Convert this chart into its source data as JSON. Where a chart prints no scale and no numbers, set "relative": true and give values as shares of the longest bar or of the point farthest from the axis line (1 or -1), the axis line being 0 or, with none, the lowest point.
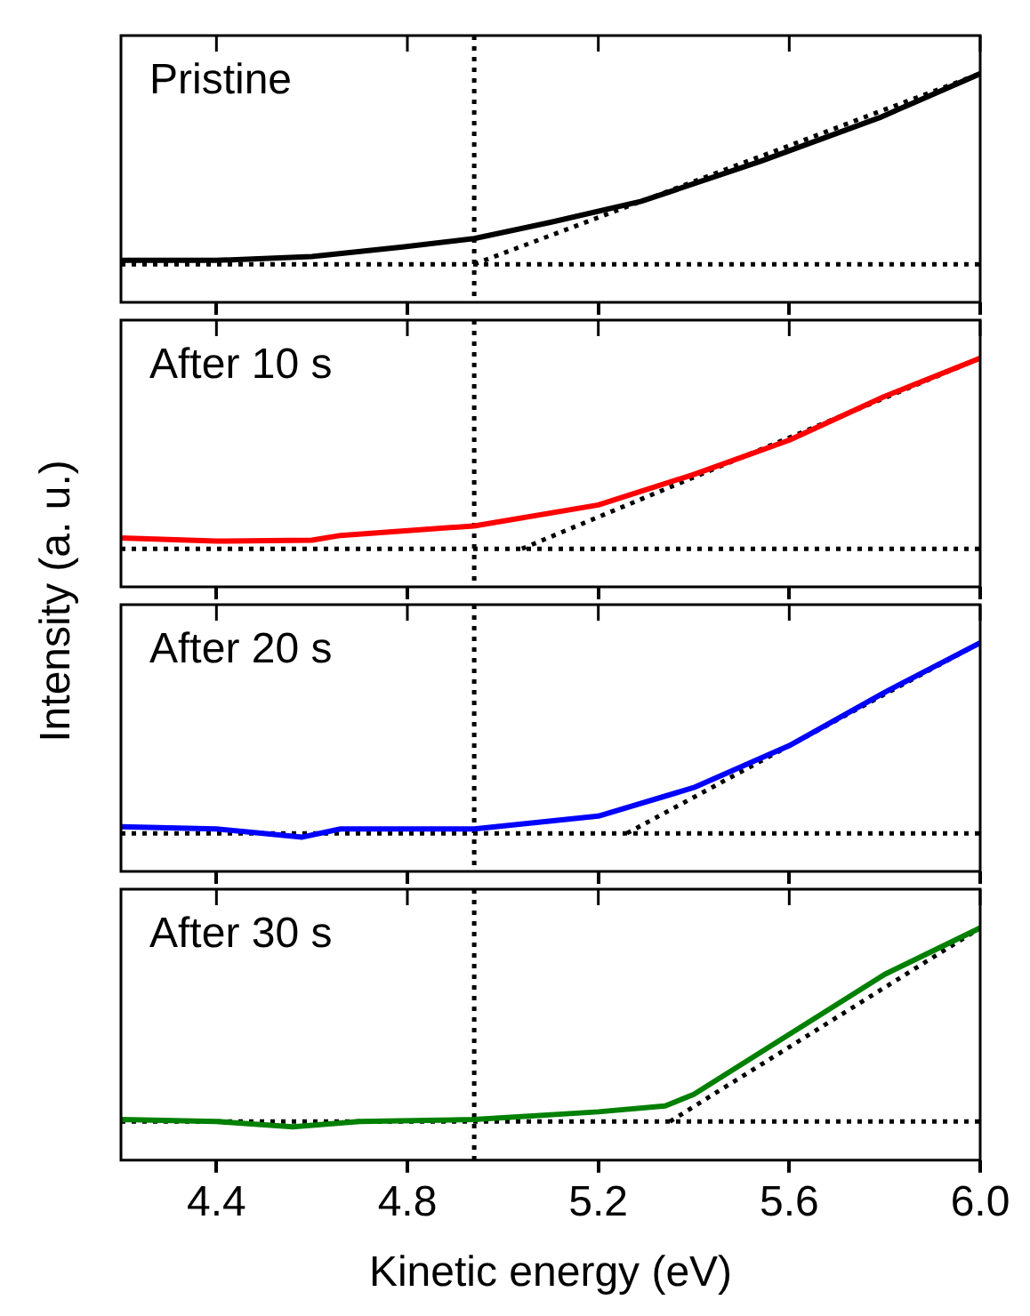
{
  "chart_data": [
    {
      "type": "line",
      "title": "Pristine",
      "ylabel": "Intensity (a. u.)",
      "relative": true,
      "xlim": [
        4.2,
        6.0
      ],
      "xticks": [
        4.4,
        4.8,
        5.2,
        5.6,
        6.0
      ],
      "tick_labels": false,
      "series": [
        {
          "color": "#000000",
          "x": [
            4.2,
            4.4,
            4.6,
            4.79,
            4.94,
            5.1,
            5.29,
            5.54,
            5.79,
            6.0
          ],
          "values": [
            0.02,
            0.02,
            0.04,
            0.09,
            0.135,
            0.22,
            0.33,
            0.54,
            0.77,
            1.0
          ]
        },
        {
          "type": "line",
          "line_style": "dotted",
          "color": "#000000",
          "x": [
            4.94,
            6.0
          ],
          "values": [
            0,
            1.0
          ]
        }
      ],
      "ref_lines": [
        {
          "axis": "x",
          "value": 4.94,
          "color": "#000000",
          "line_style": "dotted"
        },
        {
          "axis": "y",
          "value": 0,
          "color": "#000000",
          "line_style": "dotted"
        }
      ]
    },
    {
      "type": "line",
      "title": "After 10 s",
      "relative": true,
      "xlim": [
        4.2,
        6.0
      ],
      "xticks": [
        4.4,
        4.8,
        5.2,
        5.6,
        6.0
      ],
      "tick_labels": false,
      "series": [
        {
          "color": "#ff0000",
          "x": [
            4.2,
            4.4,
            4.6,
            4.66,
            4.94,
            5.2,
            5.4,
            5.6,
            5.8,
            6.0
          ],
          "values": [
            0.057,
            0.04,
            0.045,
            0.07,
            0.12,
            0.23,
            0.39,
            0.57,
            0.8,
            1.0
          ]
        },
        {
          "type": "line",
          "line_style": "dotted",
          "color": "#000000",
          "x": [
            5.04,
            6.0
          ],
          "values": [
            0,
            1.0
          ]
        }
      ],
      "ref_lines": [
        {
          "axis": "x",
          "value": 4.94,
          "color": "#000000",
          "line_style": "dotted"
        },
        {
          "axis": "y",
          "value": 0,
          "color": "#000000",
          "line_style": "dotted"
        }
      ]
    },
    {
      "type": "line",
      "title": "After 20 s",
      "relative": true,
      "xlim": [
        4.2,
        6.0
      ],
      "xticks": [
        4.4,
        4.8,
        5.2,
        5.6,
        6.0
      ],
      "tick_labels": false,
      "series": [
        {
          "color": "#0000ff",
          "x": [
            4.2,
            4.4,
            4.58,
            4.66,
            4.94,
            5.2,
            5.4,
            5.6,
            5.8,
            6.0
          ],
          "values": [
            0.035,
            0.023,
            -0.02,
            0.023,
            0.023,
            0.09,
            0.24,
            0.46,
            0.74,
            1.0
          ]
        },
        {
          "type": "line",
          "line_style": "dotted",
          "color": "#000000",
          "x": [
            5.26,
            6.0
          ],
          "values": [
            0,
            1.0
          ]
        }
      ],
      "ref_lines": [
        {
          "axis": "x",
          "value": 4.94,
          "color": "#000000",
          "line_style": "dotted"
        },
        {
          "axis": "y",
          "value": 0,
          "color": "#000000",
          "line_style": "dotted"
        }
      ]
    },
    {
      "type": "line",
      "title": "After 30 s",
      "xlabel": "Kinetic energy (eV)",
      "relative": true,
      "xlim": [
        4.2,
        6.0
      ],
      "xticks": [
        4.4,
        4.8,
        5.2,
        5.6,
        {
          "value": 6.0,
          "label": "6.0"
        }
      ],
      "tick_labels": "x",
      "series": [
        {
          "color": "#008000",
          "x": [
            4.2,
            4.4,
            4.56,
            4.7,
            4.94,
            5.2,
            5.34,
            5.4,
            5.6,
            5.8,
            6.0
          ],
          "values": [
            0.01,
            0.0,
            -0.027,
            0.0,
            0.01,
            0.05,
            0.08,
            0.14,
            0.45,
            0.76,
            1.0
          ]
        },
        {
          "type": "line",
          "line_style": "dotted",
          "color": "#000000",
          "x": [
            5.35,
            6.0
          ],
          "values": [
            0,
            1.0
          ]
        }
      ],
      "ref_lines": [
        {
          "axis": "x",
          "value": 4.94,
          "color": "#000000",
          "line_style": "dotted"
        },
        {
          "axis": "y",
          "value": 0,
          "color": "#000000",
          "line_style": "dotted"
        }
      ]
    }
  ]
}
